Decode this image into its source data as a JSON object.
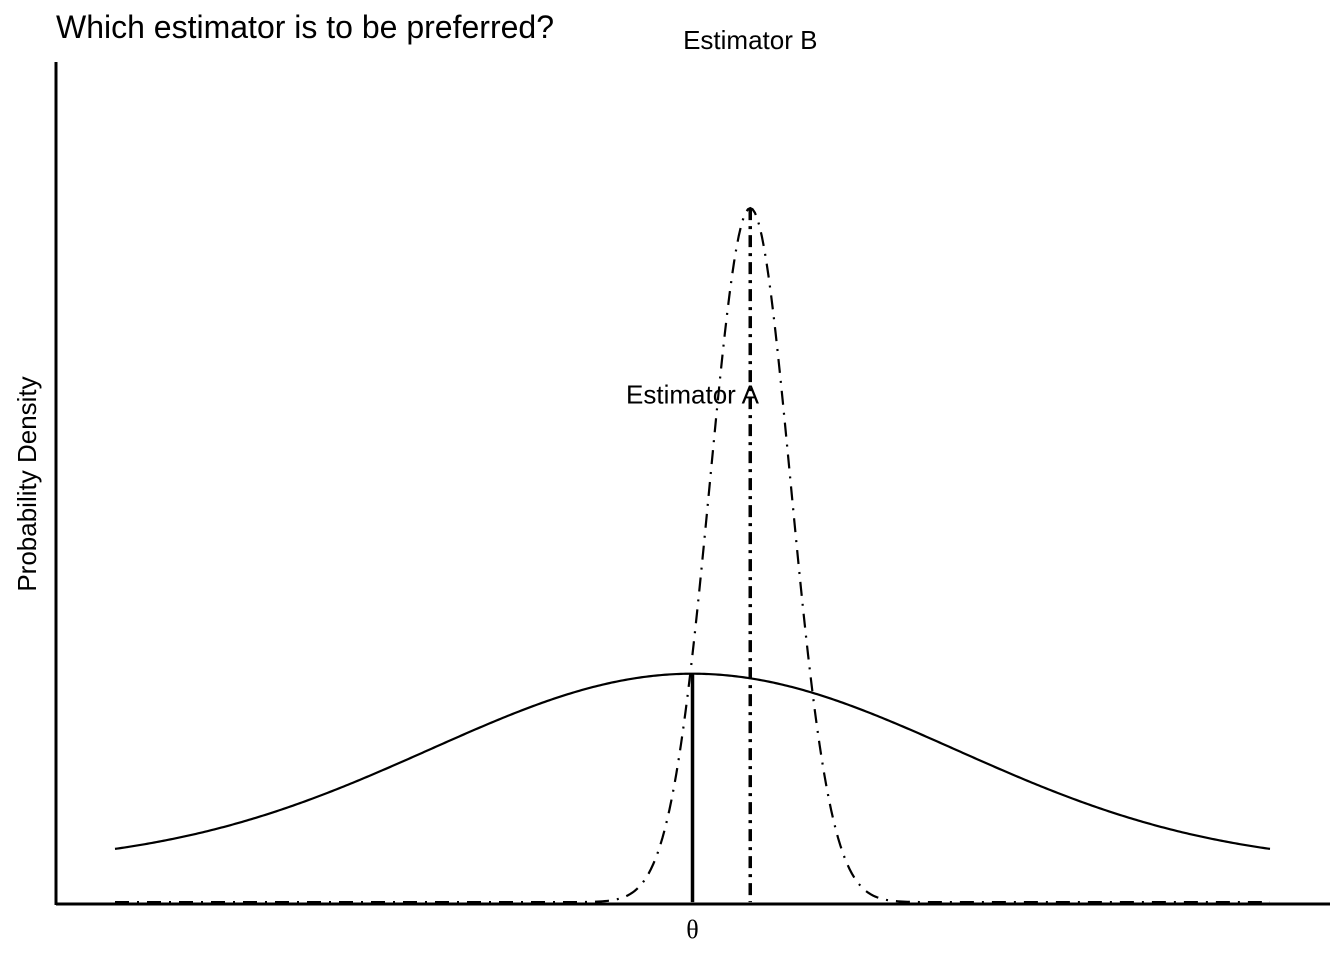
{
  "chart_data": {
    "type": "line",
    "title": "Which estimator is to be preferred?",
    "xlabel": "",
    "ylabel": "Probability Density",
    "x_tick_labels": [
      {
        "label": "θ",
        "x": 0
      }
    ],
    "xlim": [
      -3.3,
      3.3
    ],
    "ylim": [
      -0.1,
      1.0
    ],
    "grid": false,
    "legend": "none",
    "series": [
      {
        "name": "Estimator A",
        "line_style": "solid",
        "distribution": "normal",
        "mean": 0,
        "sd": 1.5,
        "baseline": 0,
        "peak_density": 0.266,
        "x_range": [
          -3.3,
          3.3
        ],
        "mean_marker_line": {
          "x": 0,
          "style": "solid"
        }
      },
      {
        "name": "Estimator B",
        "line_style": "dashdot",
        "distribution": "normal",
        "mean": 0.33,
        "sd": 0.23,
        "baseline": -0.05,
        "peak_density": 0.96,
        "x_range": [
          -3.3,
          3.3
        ],
        "mean_marker_line": {
          "x": 0.33,
          "style": "dashdot"
        }
      }
    ],
    "annotations": [
      {
        "text": "Estimator A",
        "x": 0,
        "y": 0.64
      },
      {
        "text": "Estimator B",
        "x": 0.33,
        "y": 1.13
      }
    ]
  }
}
